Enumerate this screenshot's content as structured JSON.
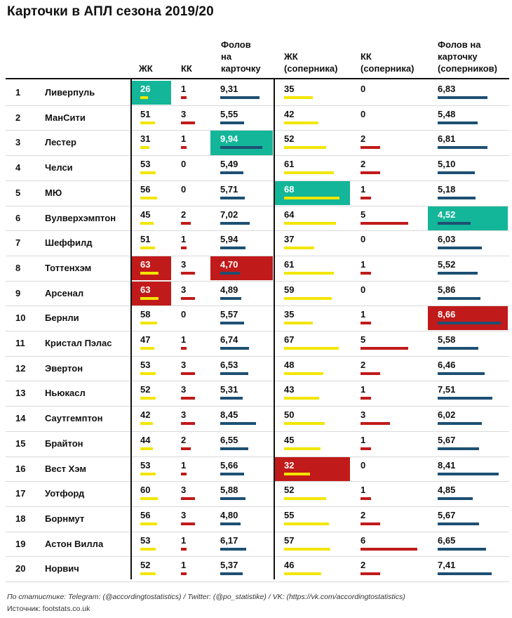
{
  "title": "Карточки в АПЛ сезона 2019/20",
  "headers": {
    "yc": "ЖК",
    "rc": "КК",
    "fpc": [
      "Фолов",
      "на",
      "карточку"
    ],
    "opp_yc": [
      "ЖК",
      "(соперника)"
    ],
    "opp_rc": [
      "КК",
      "(соперника)"
    ],
    "opp_fpc": [
      "Фолов на",
      "карточку",
      "(соперников)"
    ]
  },
  "colors": {
    "yellow": "#f2e600",
    "red": "#c11a1a",
    "navy": "#1d5073",
    "green": "#13b698"
  },
  "chart_data": {
    "type": "table",
    "columns": [
      "ЖК",
      "КК",
      "Фолов на карточку",
      "ЖК (соперника)",
      "КК (соперника)",
      "Фолов на карточку (соперников)"
    ],
    "rows": [
      {
        "rank": "1",
        "team": "Ливерпуль",
        "yc": "26",
        "rc": "1",
        "fpc": "9,31",
        "oyc": "35",
        "orc": "0",
        "ofpc": "6,83"
      },
      {
        "rank": "2",
        "team": "МанСити",
        "yc": "51",
        "rc": "3",
        "fpc": "5,55",
        "oyc": "42",
        "orc": "0",
        "ofpc": "5,48"
      },
      {
        "rank": "3",
        "team": "Лестер",
        "yc": "31",
        "rc": "1",
        "fpc": "9,94",
        "oyc": "52",
        "orc": "2",
        "ofpc": "6,81"
      },
      {
        "rank": "4",
        "team": "Челси",
        "yc": "53",
        "rc": "0",
        "fpc": "5,49",
        "oyc": "61",
        "orc": "2",
        "ofpc": "5,10"
      },
      {
        "rank": "5",
        "team": "МЮ",
        "yc": "56",
        "rc": "0",
        "fpc": "5,71",
        "oyc": "68",
        "orc": "1",
        "ofpc": "5,18"
      },
      {
        "rank": "6",
        "team": "Вулверхэмптон",
        "yc": "45",
        "rc": "2",
        "fpc": "7,02",
        "oyc": "64",
        "orc": "5",
        "ofpc": "4,52"
      },
      {
        "rank": "7",
        "team": "Шеффилд",
        "yc": "51",
        "rc": "1",
        "fpc": "5,94",
        "oyc": "37",
        "orc": "0",
        "ofpc": "6,03"
      },
      {
        "rank": "8",
        "team": "Тоттенхэм",
        "yc": "63",
        "rc": "3",
        "fpc": "4,70",
        "oyc": "61",
        "orc": "1",
        "ofpc": "5,52"
      },
      {
        "rank": "9",
        "team": "Арсенал",
        "yc": "63",
        "rc": "3",
        "fpc": "4,89",
        "oyc": "59",
        "orc": "0",
        "ofpc": "5,86"
      },
      {
        "rank": "10",
        "team": "Бернли",
        "yc": "58",
        "rc": "0",
        "fpc": "5,57",
        "oyc": "35",
        "orc": "1",
        "ofpc": "8,66"
      },
      {
        "rank": "11",
        "team": "Кристал Пэлас",
        "yc": "47",
        "rc": "1",
        "fpc": "6,74",
        "oyc": "67",
        "orc": "5",
        "ofpc": "5,58"
      },
      {
        "rank": "12",
        "team": "Эвертон",
        "yc": "53",
        "rc": "3",
        "fpc": "6,53",
        "oyc": "48",
        "orc": "2",
        "ofpc": "6,46"
      },
      {
        "rank": "13",
        "team": "Ньюкасл",
        "yc": "52",
        "rc": "3",
        "fpc": "5,31",
        "oyc": "43",
        "orc": "1",
        "ofpc": "7,51"
      },
      {
        "rank": "14",
        "team": "Саутгемптон",
        "yc": "42",
        "rc": "3",
        "fpc": "8,45",
        "oyc": "50",
        "orc": "3",
        "ofpc": "6,02"
      },
      {
        "rank": "15",
        "team": "Брайтон",
        "yc": "44",
        "rc": "2",
        "fpc": "6,55",
        "oyc": "45",
        "orc": "1",
        "ofpc": "5,67"
      },
      {
        "rank": "16",
        "team": "Вест Хэм",
        "yc": "53",
        "rc": "1",
        "fpc": "5,66",
        "oyc": "32",
        "orc": "0",
        "ofpc": "8,41"
      },
      {
        "rank": "17",
        "team": "Уотфорд",
        "yc": "60",
        "rc": "3",
        "fpc": "5,88",
        "oyc": "52",
        "orc": "1",
        "ofpc": "4,85"
      },
      {
        "rank": "18",
        "team": "Борнмут",
        "yc": "56",
        "rc": "3",
        "fpc": "4,80",
        "oyc": "55",
        "orc": "2",
        "ofpc": "5,67"
      },
      {
        "rank": "19",
        "team": "Астон Вилла",
        "yc": "53",
        "rc": "1",
        "fpc": "6,17",
        "oyc": "57",
        "orc": "6",
        "ofpc": "6,65"
      },
      {
        "rank": "20",
        "team": "Норвич",
        "yc": "52",
        "rc": "1",
        "fpc": "5,37",
        "oyc": "46",
        "orc": "2",
        "ofpc": "7,41"
      }
    ],
    "highlights": [
      {
        "row": 1,
        "col": "yc",
        "color": "green"
      },
      {
        "row": 3,
        "col": "fpc",
        "color": "green"
      },
      {
        "row": 5,
        "col": "oyc",
        "color": "green"
      },
      {
        "row": 6,
        "col": "ofpc",
        "color": "green"
      },
      {
        "row": 8,
        "col": "yc",
        "color": "red"
      },
      {
        "row": 9,
        "col": "yc",
        "color": "red"
      },
      {
        "row": 8,
        "col": "fpc",
        "color": "red"
      },
      {
        "row": 16,
        "col": "oyc",
        "color": "red"
      },
      {
        "row": 10,
        "col": "ofpc",
        "color": "red"
      }
    ]
  },
  "footer": {
    "stats": "По статистике: Telegram: (@accordingtostatistics) / Twitter: (@po_statistike) / VK: (https://vk.com/accordingtostatistics)",
    "source": "Источник: footstats.co.uk"
  }
}
